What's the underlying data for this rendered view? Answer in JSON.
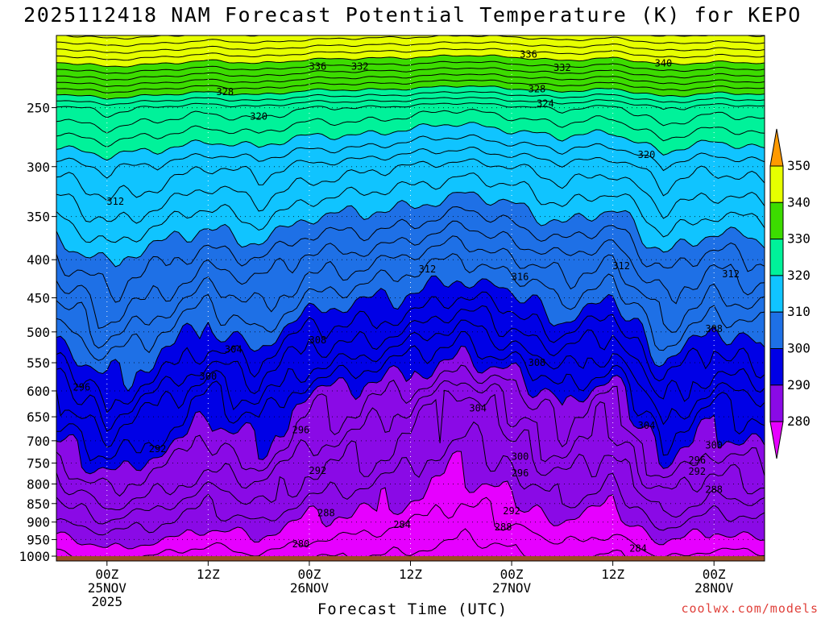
{
  "title": "2025112418 NAM Forecast Potential Temperature (K) for KEPO",
  "credit": "coolwx.com/models",
  "colors": {
    "ground": "#9c4e24",
    "bands": [
      {
        "min": 270,
        "max": 280,
        "color": "#e600ff"
      },
      {
        "min": 280,
        "max": 290,
        "color": "#8a0ae6"
      },
      {
        "min": 290,
        "max": 300,
        "color": "#0000e6"
      },
      {
        "min": 300,
        "max": 310,
        "color": "#1e70e6"
      },
      {
        "min": 310,
        "max": 320,
        "color": "#10c4ff"
      },
      {
        "min": 320,
        "max": 330,
        "color": "#00f29a"
      },
      {
        "min": 330,
        "max": 340,
        "color": "#3cdc00"
      },
      {
        "min": 340,
        "max": 350,
        "color": "#e6ff00"
      },
      {
        "min": 350,
        "max": 360,
        "color": "#ff9a00"
      }
    ]
  },
  "chart_data": {
    "type": "contour",
    "title": "2025112418 NAM Forecast Potential Temperature (K) for KEPO",
    "xlabel": "Forecast Time (UTC)",
    "ylabel": "",
    "x_ticks": [
      {
        "hour": 6,
        "lines": [
          "00Z",
          "25NOV",
          "2025"
        ]
      },
      {
        "hour": 18,
        "lines": [
          "12Z"
        ]
      },
      {
        "hour": 30,
        "lines": [
          "00Z",
          "26NOV"
        ]
      },
      {
        "hour": 42,
        "lines": [
          "12Z"
        ]
      },
      {
        "hour": 54,
        "lines": [
          "00Z",
          "27NOV"
        ]
      },
      {
        "hour": 66,
        "lines": [
          "12Z"
        ]
      },
      {
        "hour": 78,
        "lines": [
          "00Z",
          "28NOV"
        ]
      }
    ],
    "xlim": [
      0,
      84
    ],
    "y_ticks": [
      250,
      300,
      350,
      400,
      450,
      500,
      550,
      600,
      650,
      700,
      750,
      800,
      850,
      900,
      950,
      1000
    ],
    "ylim_hpa": [
      200,
      1015
    ],
    "ground_hpa": 1000,
    "colorbar": {
      "levels": [
        280,
        290,
        300,
        310,
        320,
        330,
        340,
        350
      ],
      "colors": [
        "#e600ff",
        "#8a0ae6",
        "#0000e6",
        "#1e70e6",
        "#10c4ff",
        "#00f29a",
        "#3cdc00",
        "#e6ff00",
        "#ff9a00"
      ],
      "extend": "both"
    },
    "contour_interval_K": 2,
    "grid_hours": [
      0,
      6,
      12,
      18,
      24,
      30,
      36,
      42,
      48,
      54,
      60,
      66,
      72,
      78,
      84
    ],
    "shift_K": [
      -6,
      -1,
      -4,
      -8,
      -5,
      -10,
      -11,
      -13,
      -16,
      -13,
      -9,
      -12,
      -3,
      -7,
      -5
    ],
    "contour_labels": [
      {
        "text": "336",
        "hour": 56,
        "hpa": 212
      },
      {
        "text": "336",
        "hour": 31,
        "hpa": 220
      },
      {
        "text": "332",
        "hour": 36,
        "hpa": 220
      },
      {
        "text": "332",
        "hour": 60,
        "hpa": 221
      },
      {
        "text": "340",
        "hour": 72,
        "hpa": 218
      },
      {
        "text": "328",
        "hour": 20,
        "hpa": 238
      },
      {
        "text": "328",
        "hour": 57,
        "hpa": 236
      },
      {
        "text": "324",
        "hour": 58,
        "hpa": 247
      },
      {
        "text": "320",
        "hour": 24,
        "hpa": 257
      },
      {
        "text": "320",
        "hour": 70,
        "hpa": 289
      },
      {
        "text": "312",
        "hour": 7,
        "hpa": 334
      },
      {
        "text": "312",
        "hour": 44,
        "hpa": 412
      },
      {
        "text": "316",
        "hour": 55,
        "hpa": 422
      },
      {
        "text": "312",
        "hour": 67,
        "hpa": 408
      },
      {
        "text": "312",
        "hour": 80,
        "hpa": 418
      },
      {
        "text": "308",
        "hour": 31,
        "hpa": 513
      },
      {
        "text": "308",
        "hour": 78,
        "hpa": 495
      },
      {
        "text": "304",
        "hour": 21,
        "hpa": 528
      },
      {
        "text": "308",
        "hour": 57,
        "hpa": 550
      },
      {
        "text": "300",
        "hour": 18,
        "hpa": 574
      },
      {
        "text": "296",
        "hour": 3,
        "hpa": 593
      },
      {
        "text": "304",
        "hour": 50,
        "hpa": 633
      },
      {
        "text": "304",
        "hour": 70,
        "hpa": 668
      },
      {
        "text": "296",
        "hour": 29,
        "hpa": 677
      },
      {
        "text": "300",
        "hour": 78,
        "hpa": 710
      },
      {
        "text": "292",
        "hour": 12,
        "hpa": 718
      },
      {
        "text": "300",
        "hour": 55,
        "hpa": 735
      },
      {
        "text": "296",
        "hour": 76,
        "hpa": 743
      },
      {
        "text": "292",
        "hour": 31,
        "hpa": 768
      },
      {
        "text": "292",
        "hour": 76,
        "hpa": 770
      },
      {
        "text": "296",
        "hour": 55,
        "hpa": 774
      },
      {
        "text": "288",
        "hour": 78,
        "hpa": 814
      },
      {
        "text": "292",
        "hour": 54,
        "hpa": 870
      },
      {
        "text": "288",
        "hour": 32,
        "hpa": 875
      },
      {
        "text": "284",
        "hour": 41,
        "hpa": 907
      },
      {
        "text": "288",
        "hour": 53,
        "hpa": 914
      },
      {
        "text": "280",
        "hour": 29,
        "hpa": 963
      },
      {
        "text": "284",
        "hour": 69,
        "hpa": 976
      }
    ]
  }
}
